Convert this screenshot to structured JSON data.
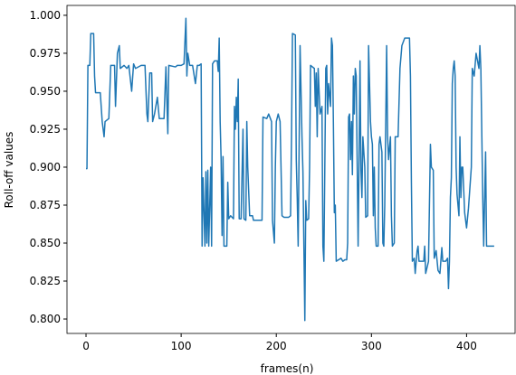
{
  "chart_data": {
    "type": "line",
    "xlabel": "frames(n)",
    "ylabel": "Roll-off values",
    "color": "#1f77b4",
    "xlim": [
      -20,
      451
    ],
    "ylim": [
      0.7905,
      1.0065
    ],
    "xticks": [
      0,
      100,
      200,
      300,
      400
    ],
    "yticks": [
      {
        "value": 0.8,
        "label": "0.800"
      },
      {
        "value": 0.825,
        "label": "0.825"
      },
      {
        "value": 0.85,
        "label": "0.850"
      },
      {
        "value": 0.875,
        "label": "0.875"
      },
      {
        "value": 0.9,
        "label": "0.900"
      },
      {
        "value": 0.925,
        "label": "0.925"
      },
      {
        "value": 0.95,
        "label": "0.950"
      },
      {
        "value": 0.975,
        "label": "0.975"
      },
      {
        "value": 1.0,
        "label": "1.000"
      }
    ],
    "x": [
      0,
      1,
      2,
      4,
      5,
      8,
      9,
      10,
      15,
      17,
      19,
      20,
      24,
      26,
      30,
      31,
      33,
      35,
      36,
      40,
      43,
      45,
      48,
      50,
      52,
      58,
      62,
      64,
      65,
      67,
      69,
      70,
      72,
      75,
      77,
      82,
      84,
      86,
      87,
      94,
      96,
      100,
      103,
      105,
      106,
      107,
      109,
      112,
      115,
      117,
      119,
      121,
      122,
      123,
      125,
      126,
      127,
      128,
      129,
      131,
      132,
      133,
      135,
      138,
      139,
      140,
      141,
      142,
      143,
      144,
      145,
      148,
      149,
      150,
      152,
      155,
      156,
      157,
      158,
      159,
      160,
      161,
      163,
      165,
      166,
      168,
      169,
      170,
      172,
      175,
      176,
      185,
      186,
      190,
      192,
      195,
      196,
      198,
      199,
      200,
      202,
      204,
      206,
      208,
      213,
      215,
      216,
      217,
      220,
      221,
      222,
      223,
      225,
      227,
      228,
      230,
      231,
      232,
      234,
      235,
      236,
      240,
      241,
      242,
      243,
      244,
      246,
      248,
      249,
      250,
      251,
      252,
      253,
      254,
      255,
      257,
      258,
      259,
      260,
      261,
      262,
      263,
      268,
      270,
      272,
      274,
      275,
      276,
      277,
      278,
      279,
      280,
      281,
      282,
      283,
      284,
      286,
      287,
      288,
      289,
      290,
      291,
      293,
      294,
      296,
      297,
      299,
      300,
      301,
      302,
      303,
      304,
      305,
      307,
      308,
      309,
      311,
      312,
      313,
      314,
      316,
      317,
      318,
      320,
      321,
      322,
      324,
      325,
      328,
      330,
      332,
      335,
      340,
      341,
      342,
      343,
      345,
      346,
      348,
      349,
      350,
      355,
      356,
      357,
      360,
      362,
      363,
      365,
      366,
      368,
      370,
      372,
      374,
      375,
      378,
      380,
      381,
      382,
      383,
      384,
      385,
      386,
      387,
      388,
      389,
      390,
      392,
      393,
      394,
      395,
      396,
      398,
      400,
      402,
      405,
      406,
      408,
      410,
      413,
      414,
      415,
      417,
      418,
      420,
      421,
      425,
      429
    ],
    "values": [
      0.899,
      0.899,
      0.967,
      0.967,
      0.988,
      0.988,
      0.96,
      0.949,
      0.949,
      0.93,
      0.92,
      0.93,
      0.932,
      0.967,
      0.967,
      0.94,
      0.975,
      0.98,
      0.965,
      0.967,
      0.965,
      0.967,
      0.95,
      0.968,
      0.965,
      0.967,
      0.967,
      0.935,
      0.93,
      0.962,
      0.962,
      0.93,
      0.935,
      0.946,
      0.932,
      0.932,
      0.966,
      0.922,
      0.967,
      0.966,
      0.967,
      0.967,
      0.968,
      0.998,
      0.96,
      0.975,
      0.967,
      0.967,
      0.955,
      0.967,
      0.967,
      0.968,
      0.848,
      0.893,
      0.848,
      0.897,
      0.85,
      0.898,
      0.848,
      0.9,
      0.848,
      0.968,
      0.97,
      0.97,
      0.963,
      0.985,
      0.93,
      0.905,
      0.855,
      0.907,
      0.848,
      0.848,
      0.89,
      0.866,
      0.868,
      0.866,
      0.94,
      0.925,
      0.946,
      0.93,
      0.958,
      0.866,
      0.866,
      0.925,
      0.866,
      0.865,
      0.93,
      0.9,
      0.868,
      0.868,
      0.865,
      0.865,
      0.933,
      0.932,
      0.935,
      0.93,
      0.865,
      0.85,
      0.9,
      0.93,
      0.935,
      0.93,
      0.868,
      0.867,
      0.867,
      0.868,
      0.92,
      0.988,
      0.987,
      0.905,
      0.88,
      0.848,
      0.98,
      0.92,
      0.897,
      0.799,
      0.878,
      0.865,
      0.866,
      0.9,
      0.967,
      0.965,
      0.94,
      0.962,
      0.92,
      0.965,
      0.935,
      0.94,
      0.848,
      0.838,
      0.9,
      0.965,
      0.967,
      0.935,
      0.955,
      0.94,
      0.985,
      0.98,
      0.93,
      0.87,
      0.875,
      0.838,
      0.84,
      0.838,
      0.839,
      0.839,
      0.85,
      0.933,
      0.935,
      0.905,
      0.93,
      0.895,
      0.96,
      0.935,
      0.965,
      0.96,
      0.848,
      0.905,
      0.97,
      0.898,
      0.88,
      0.92,
      0.9,
      0.867,
      0.868,
      0.98,
      0.93,
      0.92,
      0.915,
      0.868,
      0.9,
      0.86,
      0.848,
      0.848,
      0.915,
      0.92,
      0.91,
      0.85,
      0.848,
      0.875,
      0.98,
      0.92,
      0.905,
      0.92,
      0.868,
      0.848,
      0.85,
      0.92,
      0.92,
      0.965,
      0.98,
      0.985,
      0.985,
      0.96,
      0.89,
      0.838,
      0.84,
      0.83,
      0.845,
      0.848,
      0.838,
      0.838,
      0.848,
      0.83,
      0.838,
      0.915,
      0.9,
      0.898,
      0.84,
      0.845,
      0.832,
      0.83,
      0.847,
      0.838,
      0.838,
      0.84,
      0.82,
      0.838,
      0.88,
      0.893,
      0.955,
      0.965,
      0.97,
      0.96,
      0.9,
      0.882,
      0.868,
      0.92,
      0.88,
      0.9,
      0.9,
      0.87,
      0.86,
      0.873,
      0.9,
      0.965,
      0.96,
      0.975,
      0.965,
      0.98,
      0.965,
      0.88,
      0.848,
      0.91,
      0.848,
      0.848,
      0.848
    ]
  }
}
